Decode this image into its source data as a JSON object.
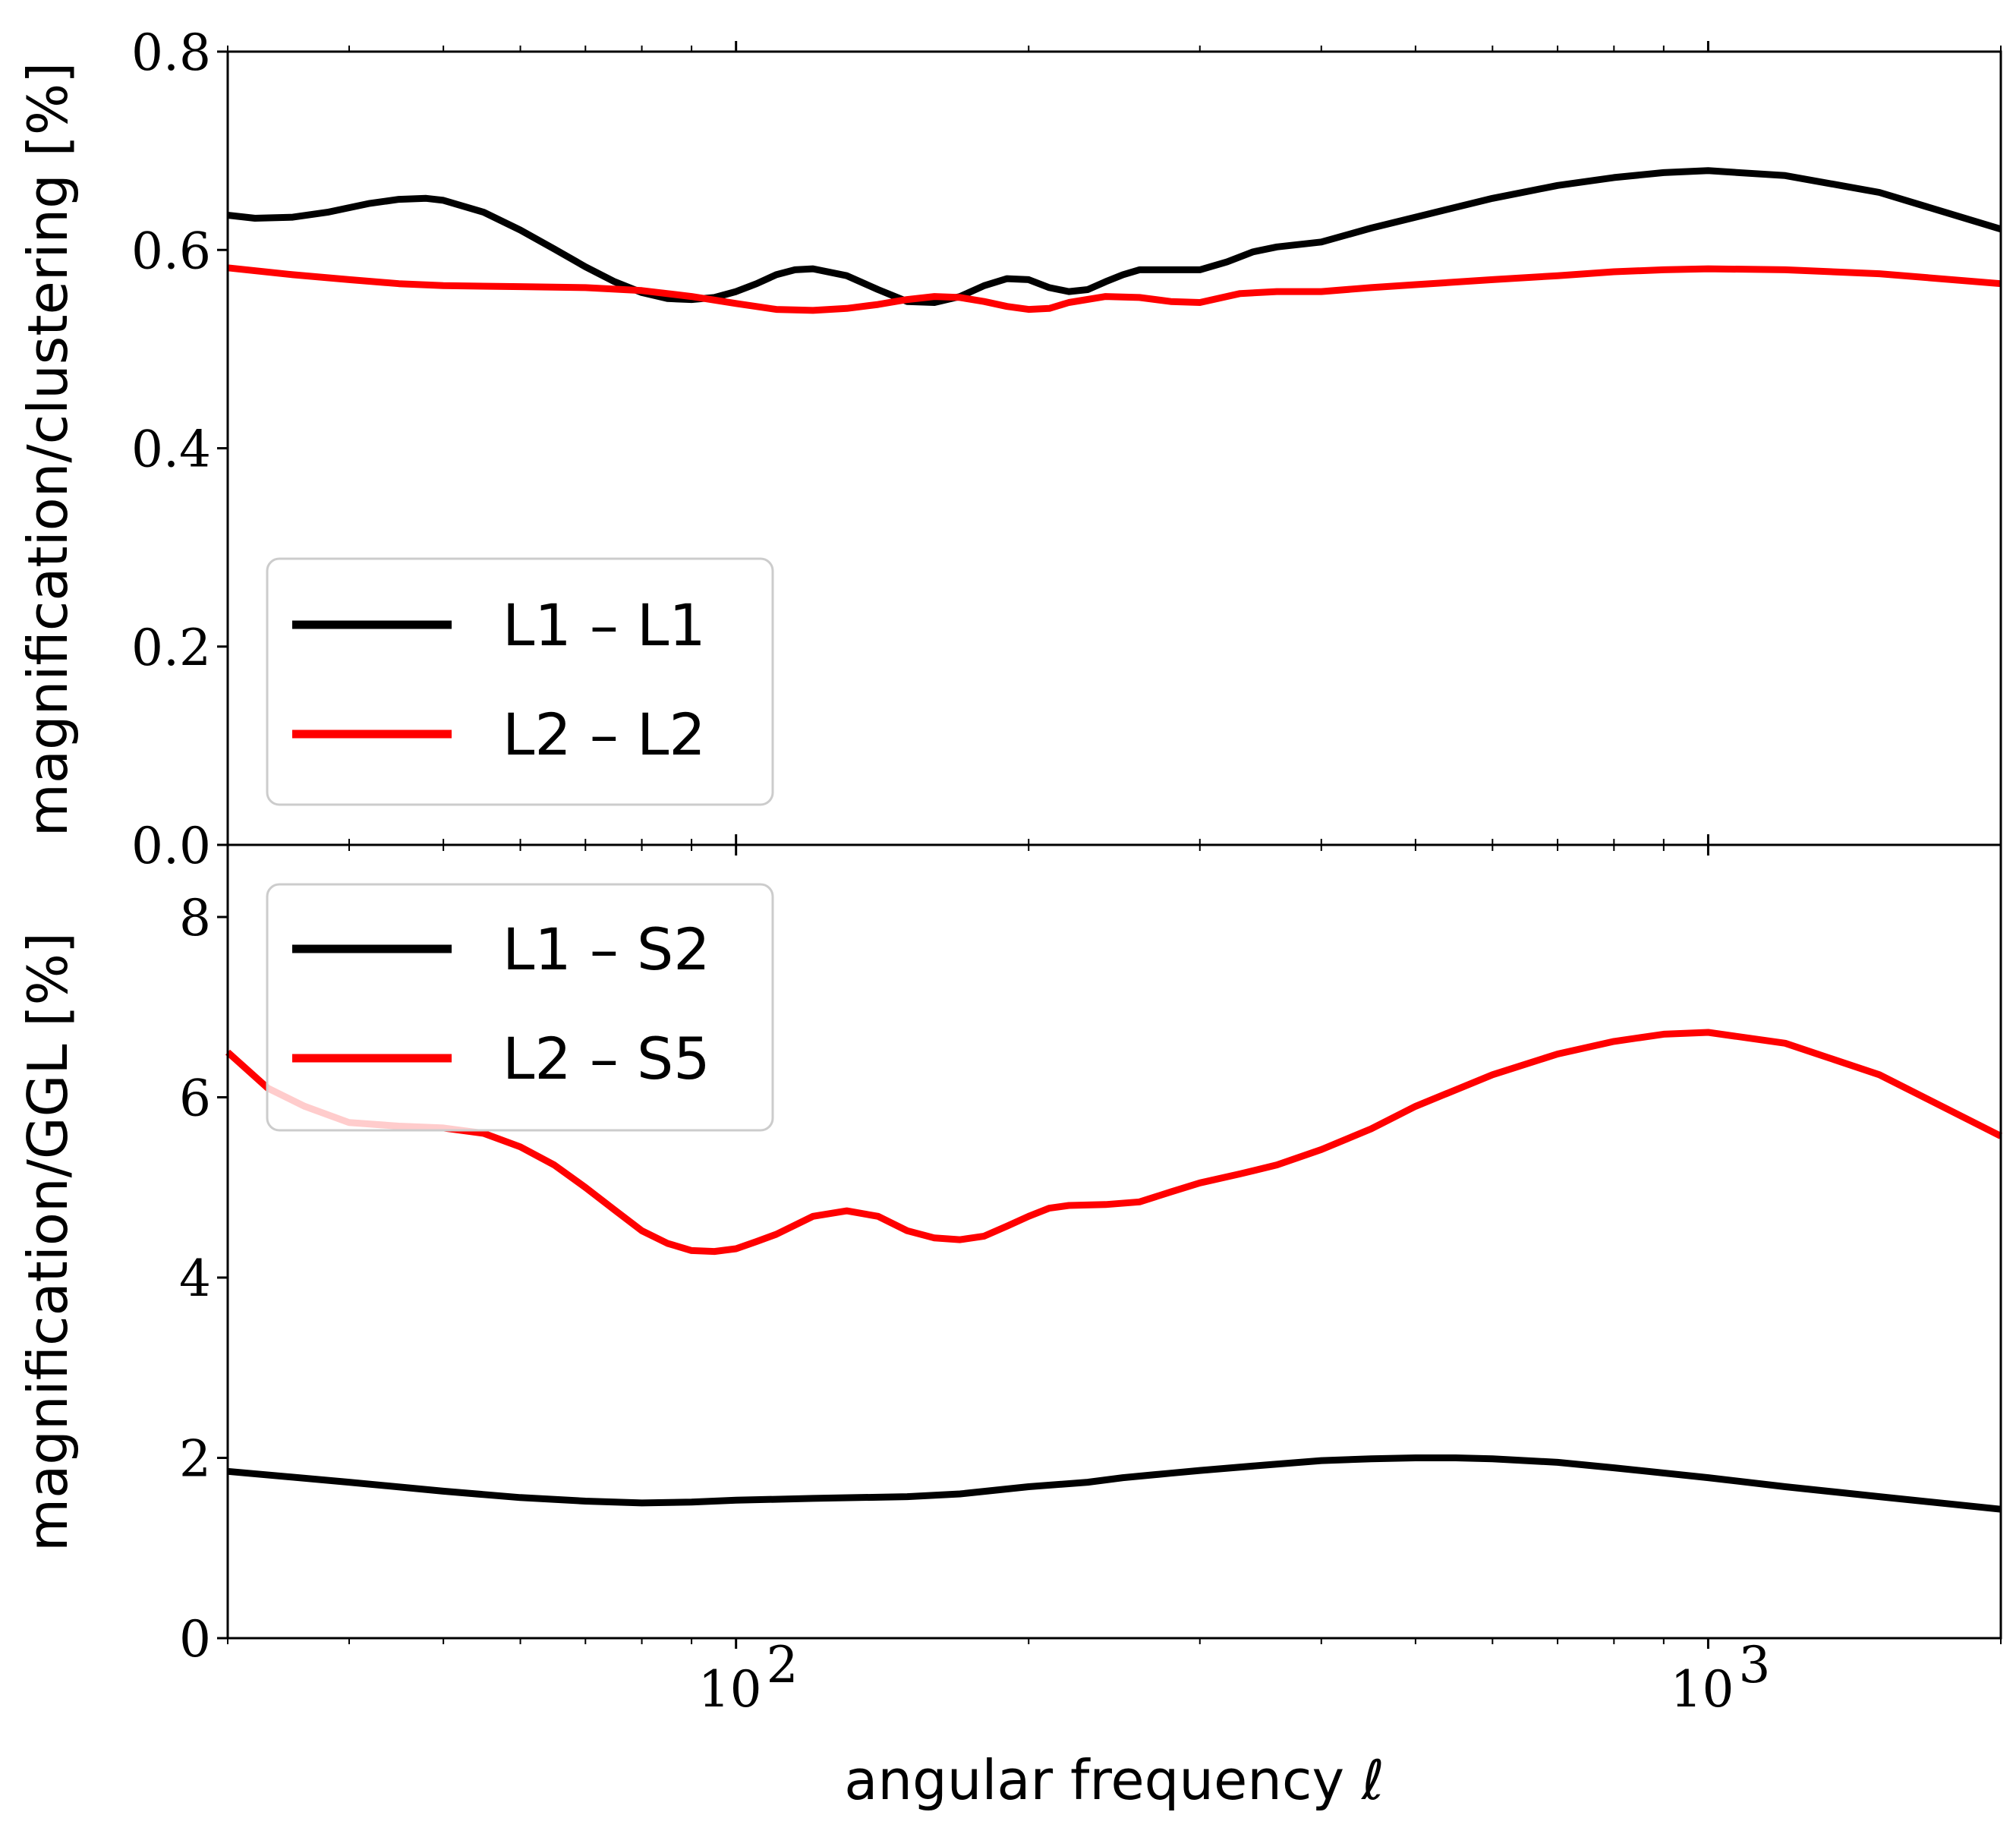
{
  "chart_data": [
    {
      "type": "line",
      "panel": "top",
      "ylabel": "magnification/clustering [%]",
      "xlabel": "",
      "xscale": "log",
      "xlim": [
        30,
        2000
      ],
      "ylim": [
        0,
        0.8
      ],
      "yticks": [
        0.0,
        0.2,
        0.4,
        0.6,
        0.8
      ],
      "ytick_labels": [
        "0.0",
        "0.2",
        "0.4",
        "0.6",
        "0.8"
      ],
      "legend_position": "lower-left",
      "series": [
        {
          "name": "L1 – L1",
          "color": "#000000",
          "x": [
            30,
            32,
            35,
            38,
            42,
            45,
            48,
            50,
            55,
            60,
            65,
            70,
            75,
            80,
            85,
            90,
            95,
            100,
            105,
            110,
            115,
            120,
            130,
            140,
            150,
            160,
            170,
            180,
            190,
            200,
            210,
            220,
            230,
            240,
            250,
            260,
            280,
            300,
            320,
            340,
            360,
            400,
            450,
            500,
            600,
            700,
            800,
            900,
            1000,
            1200,
            1500,
            2000
          ],
          "y": [
            0.635,
            0.632,
            0.633,
            0.638,
            0.647,
            0.651,
            0.652,
            0.65,
            0.638,
            0.62,
            0.601,
            0.583,
            0.568,
            0.557,
            0.551,
            0.55,
            0.552,
            0.558,
            0.566,
            0.575,
            0.58,
            0.581,
            0.574,
            0.56,
            0.548,
            0.547,
            0.553,
            0.564,
            0.571,
            0.57,
            0.562,
            0.558,
            0.56,
            0.568,
            0.575,
            0.58,
            0.58,
            0.58,
            0.588,
            0.598,
            0.603,
            0.608,
            0.622,
            0.633,
            0.652,
            0.665,
            0.673,
            0.678,
            0.68,
            0.675,
            0.658,
            0.621
          ]
        },
        {
          "name": "L2 – L2",
          "color": "#ff0000",
          "x": [
            30,
            35,
            40,
            45,
            50,
            60,
            70,
            80,
            90,
            100,
            110,
            120,
            130,
            140,
            150,
            160,
            170,
            180,
            190,
            200,
            210,
            220,
            240,
            260,
            280,
            300,
            330,
            360,
            400,
            450,
            500,
            600,
            700,
            800,
            900,
            1000,
            1200,
            1500,
            2000
          ],
          "y": [
            0.582,
            0.575,
            0.57,
            0.566,
            0.564,
            0.563,
            0.562,
            0.559,
            0.553,
            0.546,
            0.54,
            0.539,
            0.541,
            0.545,
            0.55,
            0.553,
            0.552,
            0.548,
            0.543,
            0.54,
            0.541,
            0.547,
            0.553,
            0.552,
            0.548,
            0.547,
            0.556,
            0.558,
            0.558,
            0.562,
            0.565,
            0.57,
            0.574,
            0.578,
            0.58,
            0.581,
            0.58,
            0.576,
            0.566
          ]
        }
      ]
    },
    {
      "type": "line",
      "panel": "bottom",
      "ylabel": "magnification/GGL [%]",
      "xlabel": "angular frequency ℓ",
      "xscale": "log",
      "xlim": [
        30,
        2000
      ],
      "ylim": [
        0,
        8.8
      ],
      "yticks": [
        0,
        2,
        4,
        6,
        8
      ],
      "ytick_labels": [
        "0",
        "2",
        "4",
        "6",
        "8"
      ],
      "xticks": [
        100,
        1000
      ],
      "xtick_labels": [
        "10",
        "10"
      ],
      "xtick_exponents": [
        "2",
        "3"
      ],
      "legend_position": "upper-left",
      "series": [
        {
          "name": "L1 – S2",
          "color": "#000000",
          "x": [
            30,
            40,
            50,
            60,
            70,
            80,
            90,
            100,
            120,
            150,
            170,
            200,
            230,
            250,
            280,
            300,
            350,
            400,
            450,
            500,
            550,
            600,
            700,
            800,
            1000,
            1200,
            1500,
            2000
          ],
          "y": [
            1.85,
            1.73,
            1.63,
            1.56,
            1.52,
            1.5,
            1.51,
            1.53,
            1.55,
            1.57,
            1.6,
            1.68,
            1.73,
            1.78,
            1.83,
            1.86,
            1.92,
            1.97,
            1.99,
            2.0,
            2.0,
            1.99,
            1.95,
            1.89,
            1.78,
            1.68,
            1.57,
            1.43
          ]
        },
        {
          "name": "L2 – S5",
          "color": "#ff0000",
          "x": [
            30,
            33,
            36,
            40,
            45,
            50,
            55,
            60,
            65,
            70,
            75,
            80,
            85,
            90,
            95,
            100,
            105,
            110,
            120,
            130,
            140,
            150,
            160,
            170,
            180,
            190,
            200,
            210,
            220,
            240,
            260,
            280,
            300,
            330,
            360,
            400,
            450,
            500,
            600,
            700,
            800,
            900,
            1000,
            1200,
            1500,
            2000
          ],
          "y": [
            6.5,
            6.1,
            5.9,
            5.72,
            5.68,
            5.66,
            5.6,
            5.45,
            5.25,
            5.0,
            4.75,
            4.52,
            4.38,
            4.3,
            4.29,
            4.32,
            4.4,
            4.48,
            4.68,
            4.74,
            4.68,
            4.52,
            4.44,
            4.42,
            4.46,
            4.57,
            4.68,
            4.77,
            4.8,
            4.81,
            4.84,
            4.95,
            5.05,
            5.15,
            5.25,
            5.42,
            5.65,
            5.9,
            6.25,
            6.48,
            6.62,
            6.7,
            6.72,
            6.6,
            6.25,
            5.57
          ]
        }
      ]
    }
  ]
}
